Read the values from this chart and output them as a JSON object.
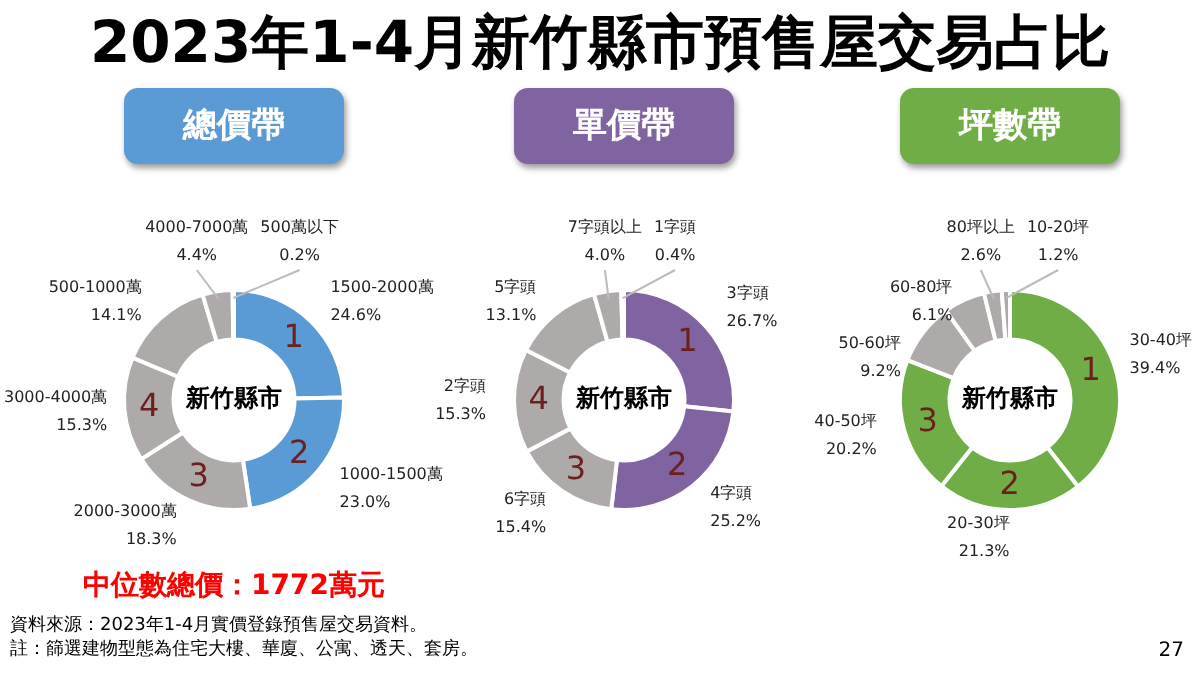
{
  "chart_data": [
    {
      "type": "donut",
      "title": "2023年1-4月新竹縣市預售屋交易占比",
      "subtitle": "總價帶",
      "categories": [
        "1500-2000萬",
        "1000-1500萬",
        "2000-3000萬",
        "3000-4000萬",
        "500-1000萬",
        "4000-7000萬",
        "500萬以下"
      ],
      "values": [
        24.6,
        23.0,
        18.3,
        15.3,
        14.1,
        4.4,
        0.2
      ],
      "value_labels": [
        "24.6%",
        "23.0%",
        "18.3%",
        "15.3%",
        "14.1%",
        "4.4%",
        "0.2%"
      ],
      "colors": [
        "#5b9bd5",
        "#5b9bd5",
        "#aeaaaa",
        "#aeaaaa",
        "#aeaaaa",
        "#aeaaaa",
        "#aeaaaa"
      ],
      "annotations": [
        "新竹縣市",
        {
          "text": "1",
          "x": "1500-2000萬"
        },
        {
          "text": "2",
          "x": "1000-1500萬"
        },
        {
          "text": "3",
          "x": "2000-3000萬"
        },
        {
          "text": "4",
          "x": "3000-4000萬"
        },
        "中位數總價：1772萬元",
        "資料來源：2023年1-4月實價登錄預售屋交易資料。",
        "註：篩選建物型態為住宅大樓、華廈、公寓、透天、套房。"
      ]
    },
    {
      "type": "donut",
      "subtitle": "單價帶",
      "categories": [
        "3字頭",
        "4字頭",
        "6字頭",
        "2字頭",
        "5字頭",
        "7字頭以上",
        "1字頭"
      ],
      "values": [
        26.7,
        25.2,
        15.4,
        15.3,
        13.1,
        4.0,
        0.4
      ],
      "value_labels": [
        "26.7%",
        "25.2%",
        "15.4%",
        "15.3%",
        "13.1%",
        "4.0%",
        "0.4%"
      ],
      "colors": [
        "#8064a2",
        "#8064a2",
        "#aeaaaa",
        "#aeaaaa",
        "#aeaaaa",
        "#aeaaaa",
        "#aeaaaa"
      ],
      "annotations": [
        "新竹縣市",
        {
          "text": "1",
          "x": "3字頭"
        },
        {
          "text": "2",
          "x": "4字頭"
        },
        {
          "text": "3",
          "x": "6字頭"
        },
        {
          "text": "4",
          "x": "2字頭"
        }
      ]
    },
    {
      "type": "donut",
      "subtitle": "坪數帶",
      "categories": [
        "30-40坪",
        "20-30坪",
        "40-50坪",
        "50-60坪",
        "60-80坪",
        "80坪以上",
        "10-20坪"
      ],
      "values": [
        39.4,
        21.3,
        20.2,
        9.2,
        6.1,
        2.6,
        1.2
      ],
      "value_labels": [
        "39.4%",
        "21.3%",
        "20.2%",
        "9.2%",
        "6.1%",
        "2.6%",
        "1.2%"
      ],
      "colors": [
        "#70ad47",
        "#70ad47",
        "#70ad47",
        "#aeaaaa",
        "#aeaaaa",
        "#aeaaaa",
        "#aeaaaa"
      ],
      "annotations": [
        "新竹縣市",
        {
          "text": "1",
          "x": "30-40坪"
        },
        {
          "text": "2",
          "x": "20-30坪"
        },
        {
          "text": "3",
          "x": "40-50坪"
        },
        "27"
      ]
    }
  ]
}
